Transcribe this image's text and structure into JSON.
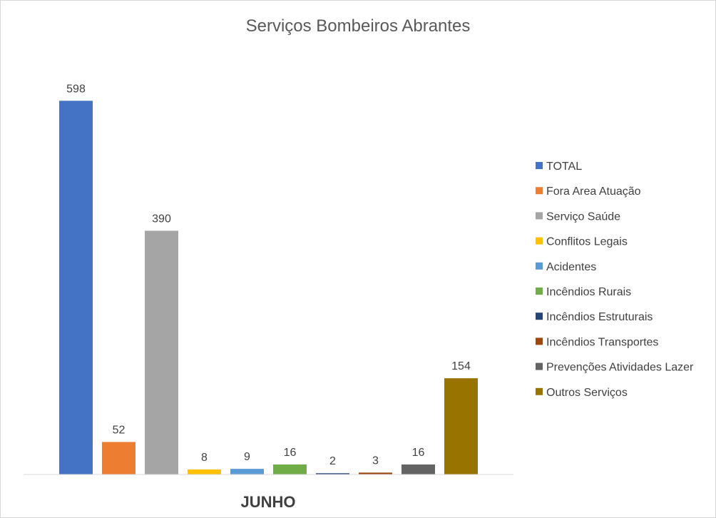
{
  "chart_data": {
    "type": "bar",
    "title": "Serviços Bombeiros Abrantes",
    "categories": [
      "JUNHO"
    ],
    "ylim": [
      0,
      620
    ],
    "grid": false,
    "legend_position": "right",
    "series": [
      {
        "name": "TOTAL",
        "values": [
          598
        ],
        "color": "#4472C4"
      },
      {
        "name": "Fora Area Atuação",
        "values": [
          52
        ],
        "color": "#ED7D31"
      },
      {
        "name": "Serviço Saúde",
        "values": [
          390
        ],
        "color": "#A5A5A5"
      },
      {
        "name": "Conflitos Legais",
        "values": [
          8
        ],
        "color": "#FFC000"
      },
      {
        "name": "Acidentes",
        "values": [
          9
        ],
        "color": "#5B9BD5"
      },
      {
        "name": "Incêndios Rurais",
        "values": [
          16
        ],
        "color": "#70AD47"
      },
      {
        "name": "Incêndios Estruturais",
        "values": [
          2
        ],
        "color": "#264478"
      },
      {
        "name": "Incêndios Transportes",
        "values": [
          3
        ],
        "color": "#9E480E"
      },
      {
        "name": "Prevenções Atividades Lazer",
        "values": [
          16
        ],
        "color": "#636363"
      },
      {
        "name": "Outros Serviços",
        "values": [
          154
        ],
        "color": "#997300"
      }
    ]
  }
}
